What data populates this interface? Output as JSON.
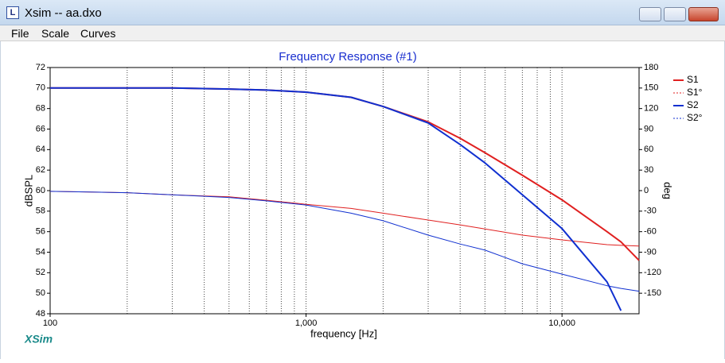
{
  "window": {
    "title": "Xsim -- aa.dxo",
    "icon": "L",
    "menu": [
      "File",
      "Scale",
      "Curves"
    ],
    "logo": "XSim"
  },
  "chart_data": {
    "type": "line",
    "title": "Frequency Response (#1)",
    "x_label": "frequency [Hz]",
    "y_label": "dBSPL",
    "y2_label": "deg",
    "log_x": true,
    "x_grid": true,
    "xlim": [
      100,
      20000
    ],
    "xticks": [
      100,
      {
        "value": 1000,
        "label": "1,000"
      },
      {
        "value": 10000,
        "label": "10,000"
      }
    ],
    "xminor": [
      200,
      300,
      400,
      500,
      600,
      700,
      800,
      900,
      2000,
      3000,
      4000,
      5000,
      6000,
      7000,
      8000,
      9000,
      20000
    ],
    "ylim": [
      48,
      72
    ],
    "yticks": [
      48,
      50,
      52,
      54,
      56,
      58,
      60,
      62,
      64,
      66,
      68,
      70,
      72
    ],
    "y2lim": [
      -180,
      180
    ],
    "y2ticks": [
      -150,
      -120,
      -90,
      -60,
      -30,
      0,
      30,
      60,
      90,
      120,
      150,
      180
    ],
    "x": [
      100,
      200,
      300,
      500,
      700,
      1000,
      1500,
      2000,
      3000,
      4000,
      5000,
      7000,
      10000,
      15000,
      17000,
      20000
    ],
    "series": [
      {
        "name": "S1",
        "color": "#e02020",
        "width": 2,
        "style": "solid",
        "values": [
          70,
          70,
          70,
          69.9,
          69.8,
          69.6,
          69.1,
          68.2,
          66.7,
          65.1,
          63.7,
          61.5,
          59.1,
          56,
          55,
          53.2
        ]
      },
      {
        "name": "S1°",
        "color": "#e02020",
        "width": 1,
        "style": "dashed",
        "axis": "y2",
        "values": [
          -1,
          -3,
          -6,
          -9,
          -14,
          -20,
          -26,
          -33,
          -43,
          -50,
          -56,
          -65,
          -72,
          -79,
          -80,
          -81
        ]
      },
      {
        "name": "S2",
        "color": "#1030d0",
        "width": 2,
        "style": "solid",
        "values": [
          70,
          70,
          70,
          69.9,
          69.8,
          69.6,
          69.1,
          68.2,
          66.6,
          64.5,
          62.7,
          59.6,
          56.3,
          51.1,
          48.3,
          null
        ]
      },
      {
        "name": "S2°",
        "color": "#1030d0",
        "width": 1,
        "style": "dashed",
        "axis": "y2",
        "values": [
          -1,
          -3,
          -6,
          -10,
          -15,
          -21,
          -33,
          -44,
          -65,
          -78,
          -87,
          -107,
          -122,
          -139,
          -143,
          -147
        ]
      }
    ]
  }
}
